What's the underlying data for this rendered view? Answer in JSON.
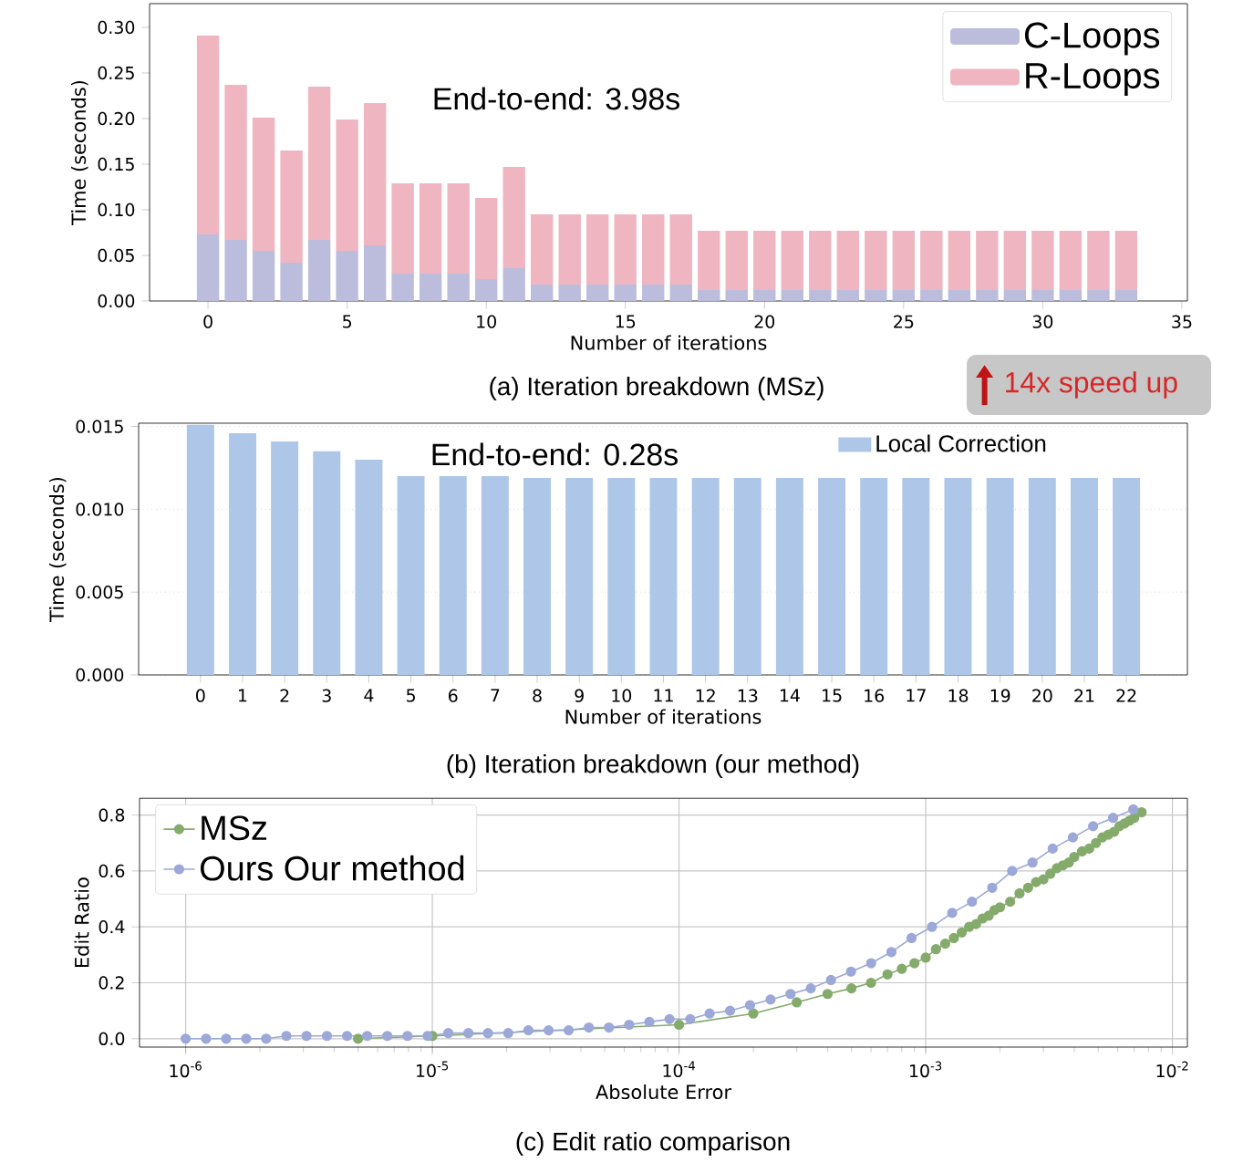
{
  "chart_data": [
    {
      "type": "bar",
      "title": "(a) Iteration breakdown (MSz)",
      "xlabel": "Number of iterations",
      "ylabel": "Time (seconds)",
      "stacked": true,
      "legend": "top right",
      "x": [
        0,
        1,
        2,
        3,
        4,
        5,
        6,
        7,
        8,
        9,
        10,
        11,
        12,
        13,
        14,
        15,
        16,
        17,
        18,
        19,
        20,
        21,
        22,
        23,
        24,
        25,
        26,
        27,
        28,
        29,
        30,
        31,
        32,
        33
      ],
      "series": [
        {
          "name": "C-Loops",
          "color": "#bcbddc",
          "values": [
            0.073,
            0.067,
            0.055,
            0.042,
            0.067,
            0.055,
            0.061,
            0.03,
            0.03,
            0.03,
            0.024,
            0.036,
            0.018,
            0.018,
            0.018,
            0.018,
            0.018,
            0.018,
            0.012,
            0.012,
            0.012,
            0.012,
            0.012,
            0.012,
            0.012,
            0.012,
            0.012,
            0.012,
            0.012,
            0.012,
            0.012,
            0.012,
            0.012,
            0.012
          ]
        },
        {
          "name": "R-Loops",
          "color": "#efb6c1",
          "values": [
            0.218,
            0.17,
            0.146,
            0.123,
            0.168,
            0.144,
            0.156,
            0.099,
            0.099,
            0.099,
            0.089,
            0.111,
            0.077,
            0.077,
            0.077,
            0.077,
            0.077,
            0.077,
            0.065,
            0.065,
            0.065,
            0.065,
            0.065,
            0.065,
            0.065,
            0.065,
            0.065,
            0.065,
            0.065,
            0.065,
            0.065,
            0.065,
            0.065,
            0.065
          ]
        }
      ],
      "xlim": [
        -2.1,
        35.2
      ],
      "xticks": [
        0,
        5,
        10,
        15,
        20,
        25,
        30,
        35
      ],
      "ylim": [
        0,
        0.326
      ],
      "yticks": [
        {
          "value": 0,
          "label": "0.00"
        },
        {
          "value": 0.05,
          "label": "0.05"
        },
        {
          "value": 0.1,
          "label": "0.10"
        },
        {
          "value": 0.15,
          "label": "0.15"
        },
        {
          "value": 0.2,
          "label": "0.20"
        },
        {
          "value": 0.25,
          "label": "0.25"
        },
        {
          "value": 0.3,
          "label": "0.30"
        }
      ],
      "annotations": [
        "End-to-end: 3.98s",
        "14x speed up"
      ]
    },
    {
      "type": "bar",
      "title": "(b) Iteration breakdown (our method)",
      "xlabel": "Number of iterations",
      "ylabel": "Time (seconds)",
      "legend": "top right",
      "grid": "y",
      "categories": [
        "0",
        "1",
        "2",
        "3",
        "4",
        "5",
        "6",
        "7",
        "8",
        "9",
        "10",
        "11",
        "12",
        "13",
        "14",
        "15",
        "16",
        "17",
        "18",
        "19",
        "20",
        "21",
        "22"
      ],
      "series": [
        {
          "name": "Local Correction",
          "color": "#aec7e8",
          "values": [
            0.0151,
            0.0146,
            0.0141,
            0.0135,
            0.013,
            0.012,
            0.012,
            0.012,
            0.0119,
            0.0119,
            0.0119,
            0.0119,
            0.0119,
            0.0119,
            0.0119,
            0.0119,
            0.0119,
            0.0119,
            0.0119,
            0.0119,
            0.0119,
            0.0119,
            0.0119
          ]
        }
      ],
      "ylim": [
        0,
        0.0152
      ],
      "yticks": [
        {
          "value": 0,
          "label": "0.000"
        },
        {
          "value": 0.005,
          "label": "0.005"
        },
        {
          "value": 0.01,
          "label": "0.010"
        },
        {
          "value": 0.015,
          "label": "0.015"
        }
      ],
      "annotations": [
        "End-to-end: 0.28s"
      ]
    },
    {
      "type": "line",
      "title": "(c) Edit ratio comparison",
      "xlabel": "Absolute Error",
      "ylabel": "Edit Ratio",
      "log": "x",
      "grid": true,
      "legend": "top left",
      "marker": "circle",
      "line_style": "solid",
      "series": [
        {
          "name": "MSz",
          "color": "#84ab6b",
          "x": [
            5e-06,
            1e-05,
            0.0001,
            0.0002,
            0.0003,
            0.0004,
            0.0005,
            0.0006,
            0.0007,
            0.0008,
            0.0009,
            0.001,
            0.0011,
            0.0012,
            0.0013,
            0.0014,
            0.0015,
            0.0016,
            0.0017,
            0.0018,
            0.0019,
            0.002,
            0.0022,
            0.0024,
            0.0026,
            0.0028,
            0.003,
            0.0032,
            0.0034,
            0.0036,
            0.0038,
            0.004,
            0.0043,
            0.0046,
            0.0049,
            0.0052,
            0.0055,
            0.0058,
            0.0061,
            0.0064,
            0.0067,
            0.007,
            0.0075
          ],
          "values": [
            0,
            0.01,
            0.05,
            0.09,
            0.13,
            0.16,
            0.18,
            0.2,
            0.23,
            0.25,
            0.27,
            0.29,
            0.32,
            0.34,
            0.36,
            0.38,
            0.4,
            0.41,
            0.43,
            0.44,
            0.46,
            0.47,
            0.49,
            0.52,
            0.54,
            0.56,
            0.57,
            0.59,
            0.61,
            0.62,
            0.63,
            0.65,
            0.67,
            0.68,
            0.7,
            0.72,
            0.73,
            0.74,
            0.76,
            0.77,
            0.78,
            0.79,
            0.81
          ]
        },
        {
          "name": "Ours Our method",
          "color": "#9ca8d8",
          "x": [
            1e-06,
            1.21e-06,
            1.46e-06,
            1.76e-06,
            2.12e-06,
            2.56e-06,
            3.09e-06,
            3.74e-06,
            4.51e-06,
            5.44e-06,
            6.57e-06,
            7.93e-06,
            9.57e-06,
            1.16e-05,
            1.4e-05,
            1.68e-05,
            2.03e-05,
            2.45e-05,
            2.96e-05,
            3.57e-05,
            4.31e-05,
            5.2e-05,
            6.28e-05,
            7.58e-05,
            9.15e-05,
            0.000111,
            0.000133,
            0.000161,
            0.000194,
            0.000235,
            0.000283,
            0.000342,
            0.000413,
            0.000498,
            0.000601,
            0.000726,
            0.000876,
            0.00106,
            0.00128,
            0.00154,
            0.00186,
            0.00224,
            0.00271,
            0.00327,
            0.00395,
            0.00477,
            0.00575,
            0.00694
          ],
          "values": [
            0,
            0,
            0,
            0,
            0,
            0.01,
            0.01,
            0.01,
            0.01,
            0.01,
            0.01,
            0.01,
            0.01,
            0.02,
            0.02,
            0.02,
            0.02,
            0.03,
            0.03,
            0.03,
            0.04,
            0.04,
            0.05,
            0.06,
            0.07,
            0.07,
            0.09,
            0.1,
            0.12,
            0.14,
            0.16,
            0.18,
            0.21,
            0.24,
            0.27,
            0.31,
            0.36,
            0.4,
            0.45,
            0.49,
            0.54,
            0.6,
            0.63,
            0.68,
            0.72,
            0.76,
            0.79,
            0.82
          ]
        }
      ],
      "xlim": [
        6.5e-07,
        0.0115
      ],
      "xticks": [
        {
          "value": 1e-06,
          "label": "10$^{-6}$"
        },
        {
          "value": 1e-05,
          "label": "10$^{-5}$"
        },
        {
          "value": 0.0001,
          "label": "10$^{-4}$"
        },
        {
          "value": 0.001,
          "label": "10$^{-3}$"
        },
        {
          "value": 0.01,
          "label": "10$^{-2}$"
        }
      ],
      "ylim": [
        -0.03,
        0.86
      ],
      "yticks": [
        {
          "value": 0,
          "label": "0.0"
        },
        {
          "value": 0.2,
          "label": "0.2"
        },
        {
          "value": 0.4,
          "label": "0.4"
        },
        {
          "value": 0.6,
          "label": "0.6"
        },
        {
          "value": 0.8,
          "label": "0.8"
        }
      ]
    }
  ]
}
